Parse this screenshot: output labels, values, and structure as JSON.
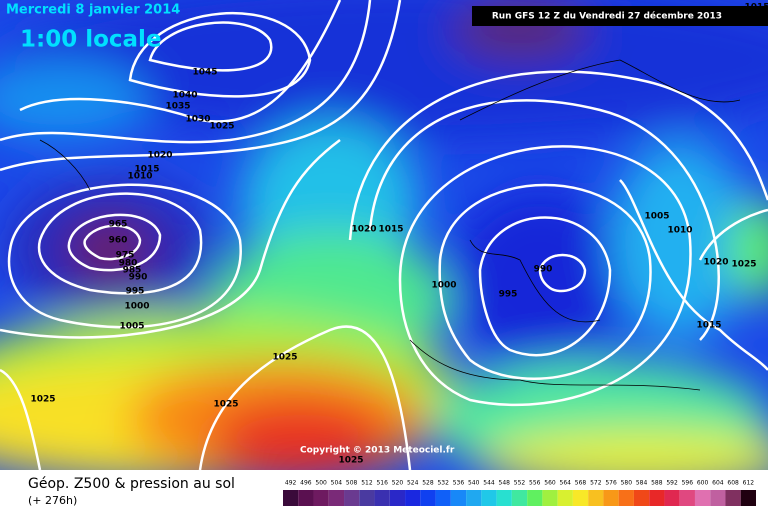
{
  "header": {
    "date": "Mercredi 8 janvier 2014",
    "time": "1:00 locale",
    "run": "Run GFS 12 Z du Vendredi 27 décembre 2013"
  },
  "copyright": "Copyright © 2013 Meteociel.fr",
  "footer": {
    "title": "Géop. Z500 & pression au sol",
    "lead": "(+ 276h)"
  },
  "isobar_labels": [
    1045,
    1040,
    1035,
    1030,
    1025,
    1020,
    1015,
    1010,
    965,
    960,
    975,
    980,
    985,
    990,
    995,
    1000,
    1005,
    1025,
    1025,
    1025,
    1025,
    1020,
    1015,
    1000,
    995,
    990,
    1005,
    1010,
    1020,
    1025,
    1015,
    1015
  ],
  "scale": {
    "values": [
      492,
      496,
      500,
      504,
      508,
      512,
      516,
      520,
      524,
      528,
      532,
      536,
      540,
      544,
      548,
      552,
      556,
      560,
      564,
      568,
      572,
      576,
      580,
      584,
      588,
      592,
      596,
      600,
      604,
      608,
      612
    ],
    "colors": [
      "#3a0a3a",
      "#5a1050",
      "#6e1a60",
      "#7a2a78",
      "#6a3a90",
      "#4a3aa0",
      "#3a30b0",
      "#2a28c8",
      "#1a28e0",
      "#1040f0",
      "#1060f8",
      "#1888f8",
      "#20a8f0",
      "#20c8e8",
      "#28e0d0",
      "#40e8a0",
      "#60f060",
      "#a0f040",
      "#d8f030",
      "#f8e828",
      "#f8c020",
      "#f89818",
      "#f87018",
      "#f04818",
      "#e82828",
      "#e02850",
      "#e04880",
      "#e070b0",
      "#c060a0",
      "#803060",
      "#200010"
    ]
  }
}
